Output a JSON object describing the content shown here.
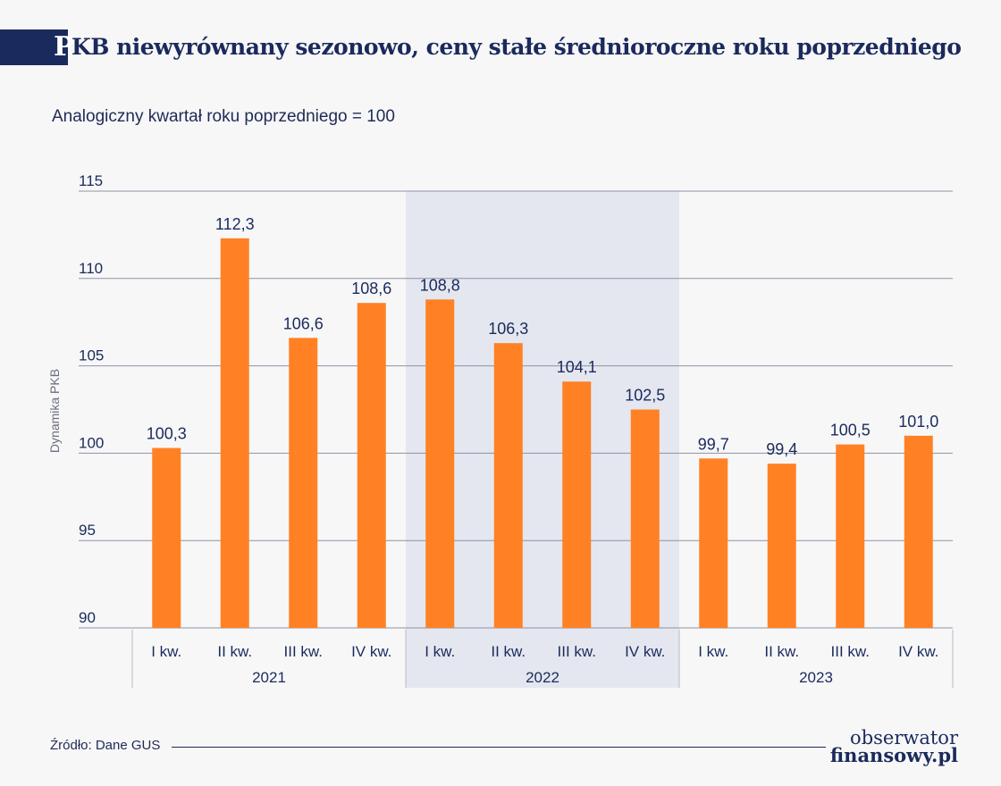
{
  "header": {
    "title_initial": "P",
    "title_rest": "KB niewyrównany sezonowo, ceny stałe średnioroczne roku poprzedniego",
    "subtitle": "Analogiczny kwartał roku poprzedniego = 100"
  },
  "footer": {
    "source": "Źródło: Dane GUS",
    "logo_line1": "obserwator",
    "logo_line2": "finansowy.pl"
  },
  "colors": {
    "bar": "#ff8124",
    "label": "#1b2a5c",
    "grid": "#8f92a3",
    "highlight_band": "#e4e7ef"
  },
  "chart_data": {
    "type": "bar",
    "title": "PKB niewyrównany sezonowo, ceny stałe średnioroczne roku poprzedniego",
    "subtitle": "Analogiczny kwartał roku poprzedniego = 100",
    "ylabel": "Dynamika PKB",
    "ylim": [
      90,
      115
    ],
    "yticks": [
      90,
      95,
      100,
      105,
      110,
      115
    ],
    "categories": [
      "I kw.",
      "II kw.",
      "III kw.",
      "IV kw.",
      "I kw.",
      "II kw.",
      "III kw.",
      "IV kw.",
      "I kw.",
      "II kw.",
      "III kw.",
      "IV kw."
    ],
    "groups": [
      "2021",
      "2022",
      "2023"
    ],
    "highlighted_group": "2022",
    "values": [
      100.3,
      112.3,
      106.6,
      108.6,
      108.8,
      106.3,
      104.1,
      102.5,
      99.7,
      99.4,
      100.5,
      101.0
    ],
    "value_labels": [
      "100,3",
      "112,3",
      "106,6",
      "108,6",
      "108,8",
      "106,3",
      "104,1",
      "102,5",
      "99,7",
      "99,4",
      "100,5",
      "101,0"
    ],
    "grid": true
  }
}
